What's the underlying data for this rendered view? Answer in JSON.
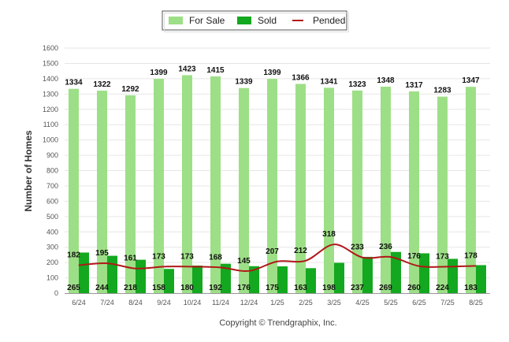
{
  "chart_data": {
    "type": "bar",
    "categories": [
      "6/24",
      "7/24",
      "8/24",
      "9/24",
      "10/24",
      "11/24",
      "12/24",
      "1/25",
      "2/25",
      "3/25",
      "4/25",
      "5/25",
      "6/25",
      "7/25",
      "8/25"
    ],
    "series": [
      {
        "name": "For Sale",
        "kind": "bar",
        "color": "#9ddf86",
        "values": [
          1334,
          1322,
          1292,
          1399,
          1423,
          1415,
          1339,
          1399,
          1366,
          1341,
          1323,
          1348,
          1317,
          1283,
          1347
        ]
      },
      {
        "name": "Sold",
        "kind": "bar",
        "color": "#13a81f",
        "values": [
          265,
          244,
          218,
          158,
          180,
          192,
          176,
          175,
          163,
          198,
          237,
          269,
          260,
          224,
          183
        ]
      },
      {
        "name": "Pended",
        "kind": "line",
        "color": "#b01818",
        "values": [
          182,
          195,
          161,
          173,
          173,
          168,
          145,
          207,
          212,
          318,
          233,
          236,
          176,
          173,
          178
        ]
      }
    ],
    "ylabel": "Number of Homes",
    "xlabel": "",
    "ylim": [
      0,
      1600
    ],
    "yticks": [
      0,
      100,
      200,
      300,
      400,
      500,
      600,
      700,
      800,
      900,
      1000,
      1100,
      1200,
      1300,
      1400,
      1500,
      1600
    ],
    "grid": true,
    "legend": "top-center"
  },
  "footer": {
    "copyright": "Copyright © Trendgraphix, Inc."
  }
}
